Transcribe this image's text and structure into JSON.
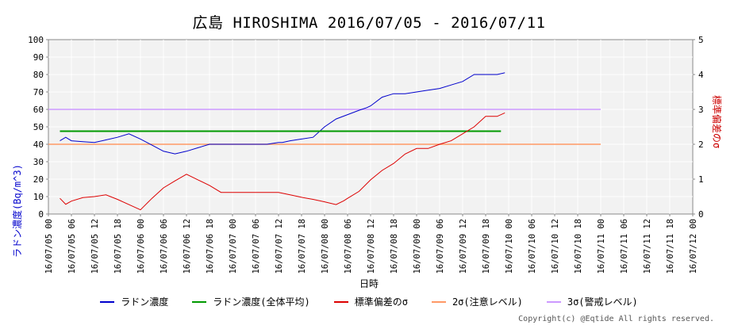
{
  "chart_data": {
    "type": "line",
    "title": "広島 HIROSHIMA 2016/07/05 - 2016/07/11",
    "xlabel": "日時",
    "ylabel_left": "ラドン濃度(Bq/m^3)",
    "ylabel_right": "標準偏差のσ",
    "ylim_left": [
      0,
      100
    ],
    "ylim_right": [
      0,
      5
    ],
    "yticks_left": [
      "0",
      "10",
      "20",
      "30",
      "40",
      "50",
      "60",
      "70",
      "80",
      "90",
      "100"
    ],
    "yticks_right": [
      "0",
      "1",
      "2",
      "3",
      "4",
      "5"
    ],
    "x_tick_labels": [
      "16/07/05 00",
      "16/07/05 06",
      "16/07/05 12",
      "16/07/05 18",
      "16/07/06 00",
      "16/07/06 06",
      "16/07/06 12",
      "16/07/06 18",
      "16/07/07 00",
      "16/07/07 06",
      "16/07/07 12",
      "16/07/07 18",
      "16/07/08 00",
      "16/07/08 06",
      "16/07/08 12",
      "16/07/08 18",
      "16/07/09 00",
      "16/07/09 06",
      "16/07/09 12",
      "16/07/09 18",
      "16/07/10 00",
      "16/07/10 06",
      "16/07/10 12",
      "16/07/10 18",
      "16/07/11 00",
      "16/07/11 06",
      "16/07/11 12",
      "16/07/11 18",
      "16/07/12 00"
    ],
    "grid": true,
    "legend_position": "bottom",
    "series": [
      {
        "name": "ラドン濃度",
        "color": "#0000cc",
        "axis": "left",
        "x": [
          6,
          9,
          12,
          18,
          24,
          30,
          36,
          42,
          48,
          54,
          60,
          66,
          72,
          78,
          84,
          90,
          96,
          100,
          102,
          108,
          114,
          120,
          122,
          126,
          132,
          138,
          144,
          150,
          156,
          162,
          166,
          168,
          174,
          180,
          186,
          192,
          198,
          204,
          210,
          216,
          222,
          228,
          234,
          238
        ],
        "y": [
          42,
          44,
          42,
          41.5,
          41,
          42.5,
          44,
          46,
          43,
          39.5,
          36,
          34.5,
          36,
          38,
          40,
          40,
          40,
          40,
          40,
          40,
          40,
          41,
          41,
          42,
          43,
          44,
          50,
          54.5,
          57,
          59.5,
          61,
          62,
          67,
          69,
          69,
          70,
          71,
          72,
          74,
          76,
          80,
          80,
          80,
          81
        ]
      },
      {
        "name": "ラドン濃度(全体平均)",
        "color": "#009900",
        "axis": "left",
        "x": [
          6,
          236
        ],
        "y": [
          47.5,
          47.5
        ]
      },
      {
        "name": "標準偏差のσ",
        "color": "#dd0000",
        "axis": "right",
        "x": [
          6,
          9,
          12,
          18,
          24,
          30,
          36,
          48,
          54,
          60,
          66,
          72,
          78,
          84,
          90,
          96,
          102,
          108,
          114,
          120,
          126,
          132,
          138,
          144,
          150,
          154,
          156,
          162,
          168,
          174,
          180,
          186,
          192,
          198,
          204,
          210,
          216,
          222,
          228,
          234,
          238
        ],
        "y": [
          0.45,
          0.28,
          0.37,
          0.47,
          0.5,
          0.55,
          0.42,
          0.12,
          0.45,
          0.75,
          0.95,
          1.14,
          0.98,
          0.82,
          0.62,
          0.62,
          0.62,
          0.62,
          0.62,
          0.62,
          0.55,
          0.48,
          0.42,
          0.35,
          0.27,
          0.38,
          0.45,
          0.65,
          0.98,
          1.25,
          1.45,
          1.72,
          1.88,
          1.88,
          2.0,
          2.1,
          2.3,
          2.5,
          2.8,
          2.8,
          2.9
        ]
      },
      {
        "name": "2σ(注意レベル)",
        "color": "#ff9966",
        "axis": "left",
        "x": [
          0,
          288
        ],
        "y": [
          40,
          40
        ]
      },
      {
        "name": "3σ(警戒レベル)",
        "color": "#cc99ff",
        "axis": "left",
        "x": [
          0,
          288
        ],
        "y": [
          60,
          60
        ]
      }
    ]
  },
  "copyright": "Copyright(c) @Eqtide All rights reserved."
}
